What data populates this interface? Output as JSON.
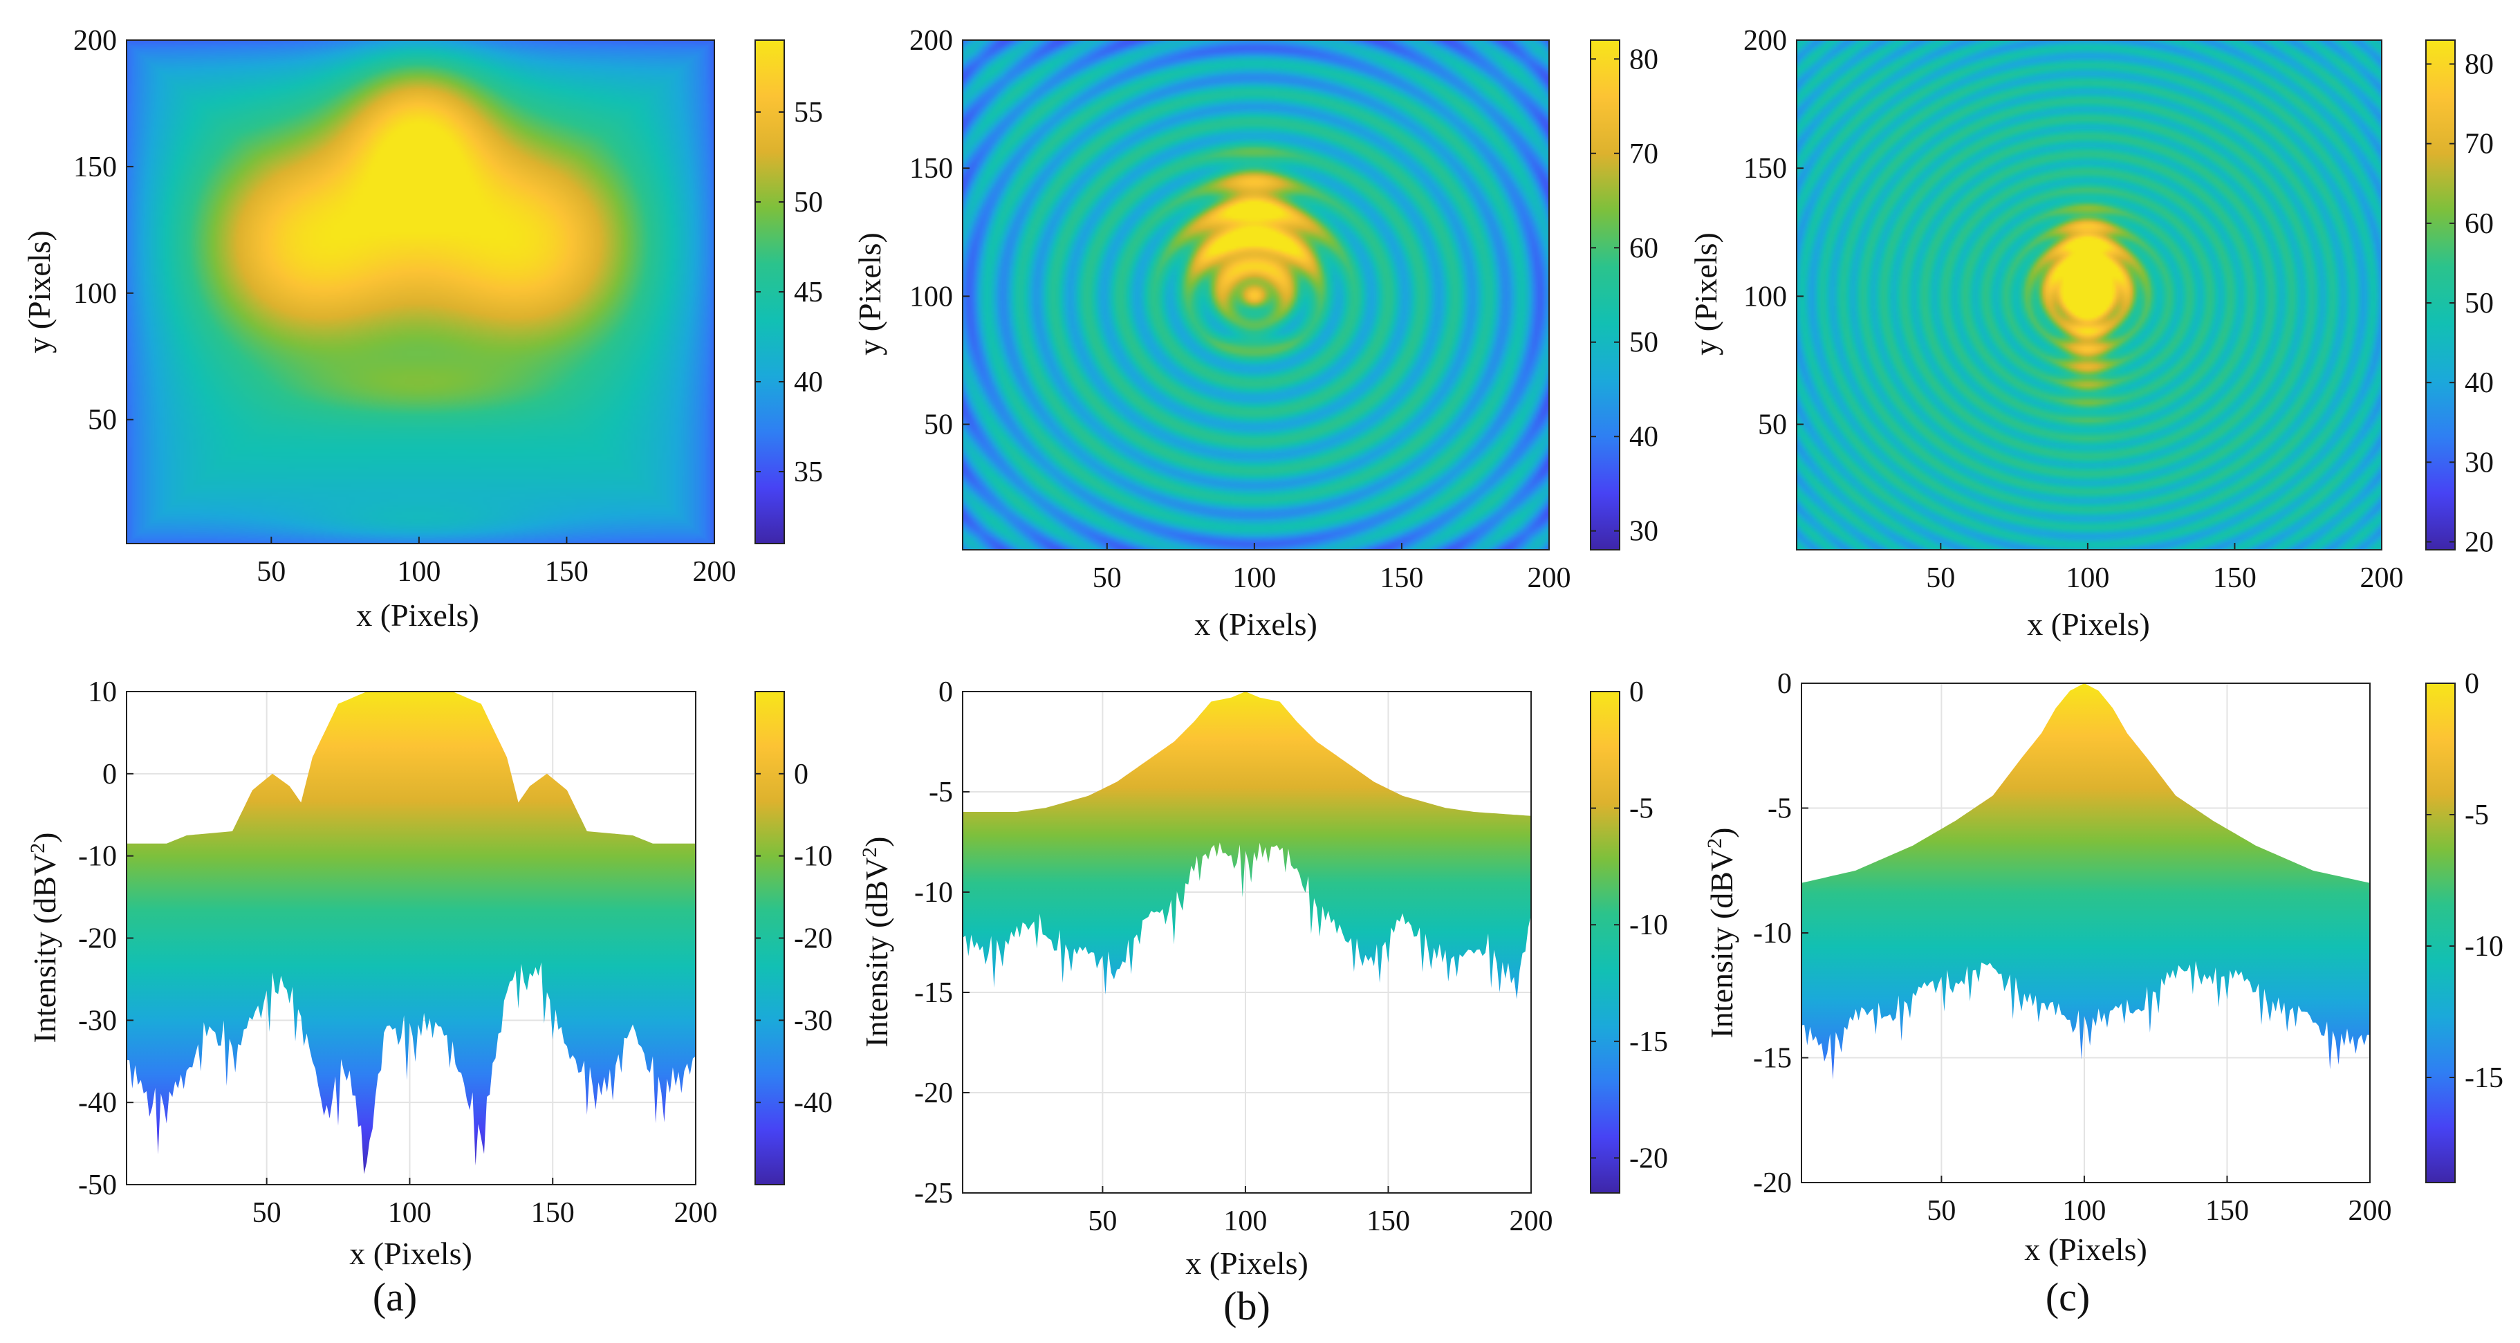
{
  "figure": {
    "captions": [
      "(a)",
      "(b)",
      "(c)"
    ],
    "colormap": [
      "#3e26a8",
      "#4743f4",
      "#2f7ff3",
      "#1ba9da",
      "#12c0b3",
      "#2bc38c",
      "#7dc03c",
      "#ddb22e",
      "#fcc334",
      "#f7e51a"
    ]
  },
  "chart_data": [
    {
      "id": "a-top",
      "type": "heatmap",
      "panel": "(a)",
      "title": "",
      "xlabel": "x (Pixels)",
      "ylabel": "y (Pixels)",
      "xlim": [
        1,
        200
      ],
      "ylim": [
        1,
        200
      ],
      "xticks": [
        50,
        100,
        150,
        200
      ],
      "yticks": [
        50,
        100,
        150,
        200
      ],
      "clim": [
        31,
        59
      ],
      "colorbar_ticks": [
        35,
        40,
        45,
        50,
        55
      ],
      "field": {
        "base": 44,
        "edge_drop": 8,
        "blobs": [
          {
            "x": 63,
            "y": 120,
            "sx": 28,
            "sy": 30,
            "amp": 14
          },
          {
            "x": 137,
            "y": 120,
            "sx": 28,
            "sy": 30,
            "amp": 14
          },
          {
            "x": 100,
            "y": 163,
            "sx": 18,
            "sy": 24,
            "amp": 13
          },
          {
            "x": 100,
            "y": 62,
            "sx": 28,
            "sy": 9,
            "amp": 4
          },
          {
            "x": 100,
            "y": 8,
            "sx": 30,
            "sy": 6,
            "amp": 3
          }
        ],
        "ring_freq": 0,
        "ring_amp": 0,
        "ring_center": [
          100,
          100
        ]
      }
    },
    {
      "id": "b-top",
      "type": "heatmap",
      "panel": "(b)",
      "title": "",
      "xlabel": "x (Pixels)",
      "ylabel": "y (Pixels)",
      "xlim": [
        1,
        200
      ],
      "ylim": [
        1,
        200
      ],
      "xticks": [
        50,
        100,
        150,
        200
      ],
      "yticks": [
        50,
        100,
        150,
        200
      ],
      "clim": [
        28,
        82
      ],
      "colorbar_ticks": [
        30,
        40,
        50,
        60,
        70,
        80
      ],
      "field": {
        "base": 52,
        "edge_drop": 10,
        "blobs": [
          {
            "x": 88,
            "y": 118,
            "sx": 9,
            "sy": 11,
            "amp": 22
          },
          {
            "x": 112,
            "y": 118,
            "sx": 9,
            "sy": 11,
            "amp": 22
          },
          {
            "x": 100,
            "y": 135,
            "sx": 9,
            "sy": 12,
            "amp": 26
          },
          {
            "x": 100,
            "y": 100,
            "sx": 9,
            "sy": 6,
            "amp": 14
          },
          {
            "x": 100,
            "y": 82,
            "sx": 8,
            "sy": 3,
            "amp": 10
          }
        ],
        "ring_freq": 0.55,
        "ring_amp": 6,
        "ring_center": [
          100,
          100
        ]
      }
    },
    {
      "id": "c-top",
      "type": "heatmap",
      "panel": "(c)",
      "title": "",
      "xlabel": "x (Pixels)",
      "ylabel": "y (Pixels)",
      "xlim": [
        1,
        200
      ],
      "ylim": [
        1,
        200
      ],
      "xticks": [
        50,
        100,
        150,
        200
      ],
      "yticks": [
        50,
        100,
        150,
        200
      ],
      "clim": [
        19,
        83
      ],
      "colorbar_ticks": [
        20,
        30,
        40,
        50,
        60,
        70,
        80
      ],
      "field": {
        "base": 50,
        "edge_drop": 8,
        "blobs": [
          {
            "x": 100,
            "y": 120,
            "sx": 7,
            "sy": 9,
            "amp": 28
          },
          {
            "x": 92,
            "y": 105,
            "sx": 7,
            "sy": 9,
            "amp": 26
          },
          {
            "x": 108,
            "y": 105,
            "sx": 7,
            "sy": 9,
            "amp": 26
          },
          {
            "x": 100,
            "y": 88,
            "sx": 6,
            "sy": 18,
            "amp": 24
          }
        ],
        "ring_freq": 0.9,
        "ring_amp": 5,
        "ring_center": [
          100,
          100
        ]
      }
    },
    {
      "id": "a-bottom",
      "type": "area",
      "panel": "(a)",
      "title": "",
      "xlabel": "x (Pixels)",
      "ylabel": "Intensity (dBV",
      "ylabel_sup": "2",
      "ylabel_end": ")",
      "xlim": [
        1,
        200
      ],
      "ylim": [
        -50,
        10
      ],
      "xticks": [
        50,
        100,
        150,
        200
      ],
      "yticks": [
        -50,
        -40,
        -30,
        -20,
        -10,
        0,
        10
      ],
      "clim": [
        -50,
        10
      ],
      "colorbar_ticks": [
        -40,
        -30,
        -20,
        -10,
        0
      ],
      "upper": [
        [
          1,
          -8.5
        ],
        [
          15,
          -8.5
        ],
        [
          22,
          -7.5
        ],
        [
          38,
          -7
        ],
        [
          45,
          -2
        ],
        [
          52,
          0
        ],
        [
          58,
          -1.5
        ],
        [
          62,
          -3.5
        ],
        [
          66,
          2
        ],
        [
          75,
          8.5
        ],
        [
          85,
          10
        ],
        [
          115,
          10
        ],
        [
          125,
          8.5
        ],
        [
          134,
          2
        ],
        [
          138,
          -3.5
        ],
        [
          142,
          -1.5
        ],
        [
          148,
          0
        ],
        [
          155,
          -2
        ],
        [
          162,
          -7
        ],
        [
          178,
          -7.5
        ],
        [
          185,
          -8.5
        ],
        [
          200,
          -8.5
        ]
      ],
      "lower": [
        [
          1,
          -34
        ],
        [
          12,
          -38
        ],
        [
          22,
          -36
        ],
        [
          30,
          -28
        ],
        [
          40,
          -32
        ],
        [
          55,
          -22
        ],
        [
          62,
          -28
        ],
        [
          70,
          -40
        ],
        [
          78,
          -32
        ],
        [
          85,
          -46
        ],
        [
          92,
          -29
        ],
        [
          100,
          -29
        ],
        [
          108,
          -29
        ],
        [
          118,
          -34
        ],
        [
          125,
          -42
        ],
        [
          135,
          -24
        ],
        [
          145,
          -21
        ],
        [
          155,
          -33
        ],
        [
          168,
          -36
        ],
        [
          178,
          -30
        ],
        [
          188,
          -36
        ],
        [
          200,
          -34
        ]
      ],
      "lower_noise": 6
    },
    {
      "id": "b-bottom",
      "type": "area",
      "panel": "(b)",
      "title": "",
      "xlabel": "x (Pixels)",
      "ylabel": "Intensity (dBV",
      "ylabel_sup": "2",
      "ylabel_end": ")",
      "xlim": [
        1,
        200
      ],
      "ylim": [
        -25,
        0
      ],
      "xticks": [
        50,
        100,
        150,
        200
      ],
      "yticks": [
        -25,
        -20,
        -15,
        -10,
        -5,
        0
      ],
      "clim": [
        -21.5,
        0
      ],
      "colorbar_ticks": [
        -20,
        -15,
        -10,
        -5,
        0
      ],
      "upper": [
        [
          1,
          -6
        ],
        [
          20,
          -6
        ],
        [
          30,
          -5.8
        ],
        [
          45,
          -5.2
        ],
        [
          55,
          -4.5
        ],
        [
          62,
          -3.8
        ],
        [
          70,
          -3
        ],
        [
          75,
          -2.5
        ],
        [
          82,
          -1.5
        ],
        [
          88,
          -0.5
        ],
        [
          95,
          -0.3
        ],
        [
          100,
          0
        ],
        [
          105,
          -0.3
        ],
        [
          112,
          -0.5
        ],
        [
          118,
          -1.5
        ],
        [
          125,
          -2.5
        ],
        [
          130,
          -3
        ],
        [
          138,
          -3.8
        ],
        [
          145,
          -4.5
        ],
        [
          155,
          -5.2
        ],
        [
          170,
          -5.8
        ],
        [
          180,
          -6
        ],
        [
          200,
          -6.2
        ]
      ],
      "lower": [
        [
          1,
          -12
        ],
        [
          15,
          -12
        ],
        [
          28,
          -11
        ],
        [
          40,
          -12.5
        ],
        [
          55,
          -13
        ],
        [
          65,
          -11
        ],
        [
          75,
          -10
        ],
        [
          82,
          -8
        ],
        [
          90,
          -7.5
        ],
        [
          100,
          -7.5
        ],
        [
          110,
          -7.5
        ],
        [
          118,
          -8
        ],
        [
          125,
          -10
        ],
        [
          135,
          -12
        ],
        [
          145,
          -12.5
        ],
        [
          155,
          -11
        ],
        [
          165,
          -12
        ],
        [
          175,
          -13
        ],
        [
          185,
          -12
        ],
        [
          195,
          -14
        ],
        [
          200,
          -11
        ]
      ],
      "lower_noise": 2
    },
    {
      "id": "c-bottom",
      "type": "area",
      "panel": "(c)",
      "title": "",
      "xlabel": "x (Pixels)",
      "ylabel": "Intensity (dBV",
      "ylabel_sup": "2",
      "ylabel_end": ")",
      "xlim": [
        1,
        200
      ],
      "ylim": [
        -20,
        0
      ],
      "xticks": [
        50,
        100,
        150,
        200
      ],
      "yticks": [
        -20,
        -15,
        -10,
        -5,
        0
      ],
      "clim": [
        -19,
        0
      ],
      "colorbar_ticks": [
        -15,
        -10,
        -5,
        0
      ],
      "upper": [
        [
          1,
          -8
        ],
        [
          20,
          -7.5
        ],
        [
          40,
          -6.5
        ],
        [
          55,
          -5.5
        ],
        [
          68,
          -4.5
        ],
        [
          78,
          -3
        ],
        [
          85,
          -2
        ],
        [
          90,
          -1
        ],
        [
          95,
          -0.3
        ],
        [
          100,
          0
        ],
        [
          105,
          -0.3
        ],
        [
          110,
          -1
        ],
        [
          115,
          -2
        ],
        [
          122,
          -3
        ],
        [
          132,
          -4.5
        ],
        [
          145,
          -5.5
        ],
        [
          160,
          -6.5
        ],
        [
          180,
          -7.5
        ],
        [
          200,
          -8
        ]
      ],
      "lower": [
        [
          1,
          -13.5
        ],
        [
          10,
          -14
        ],
        [
          20,
          -13
        ],
        [
          35,
          -12.5
        ],
        [
          50,
          -11.5
        ],
        [
          65,
          -11
        ],
        [
          75,
          -11.5
        ],
        [
          85,
          -12.5
        ],
        [
          95,
          -13
        ],
        [
          100,
          -13
        ],
        [
          108,
          -13
        ],
        [
          118,
          -12.5
        ],
        [
          128,
          -11.5
        ],
        [
          140,
          -11
        ],
        [
          155,
          -11.5
        ],
        [
          170,
          -12.5
        ],
        [
          185,
          -13.5
        ],
        [
          200,
          -14
        ]
      ],
      "lower_noise": 1.5
    }
  ]
}
